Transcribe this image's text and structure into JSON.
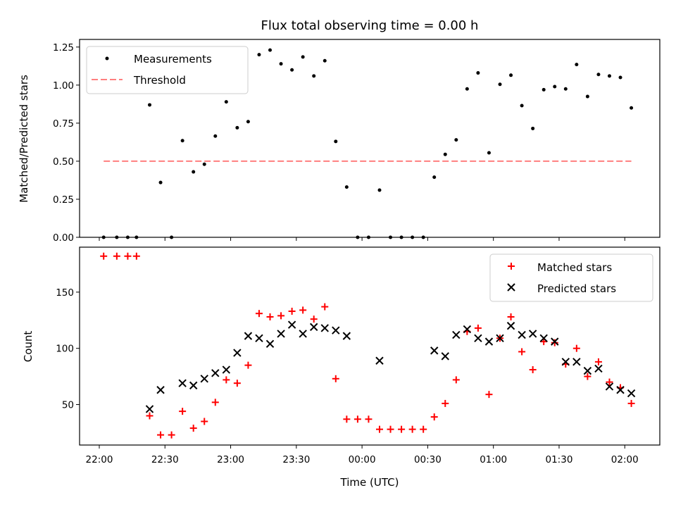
{
  "chart_data": [
    {
      "type": "scatter",
      "title": "Flux total observing time = 0.00 h",
      "ylabel": "Matched/Predicted stars",
      "xlabel": "",
      "ylim": [
        0,
        1.3
      ],
      "yticks": [
        "0.00",
        "0.25",
        "0.50",
        "0.75",
        "1.00",
        "1.25"
      ],
      "xlim": [
        "21:51",
        "02:16"
      ],
      "x_tick_times": [
        "22:00",
        "22:30",
        "23:00",
        "23:30",
        "00:00",
        "00:30",
        "01:00",
        "01:30",
        "02:00"
      ],
      "legend_position": "top-left",
      "series": [
        {
          "name": "Measurements",
          "color": "#000000",
          "marker": "dot",
          "points": [
            [
              "22:02",
              0.0
            ],
            [
              "22:08",
              0.0
            ],
            [
              "22:13",
              0.0
            ],
            [
              "22:17",
              0.0
            ],
            [
              "22:23",
              0.87
            ],
            [
              "22:28",
              0.36
            ],
            [
              "22:33",
              0.0
            ],
            [
              "22:38",
              0.635
            ],
            [
              "22:43",
              0.43
            ],
            [
              "22:48",
              0.48
            ],
            [
              "22:53",
              0.665
            ],
            [
              "22:58",
              0.89
            ],
            [
              "23:03",
              0.72
            ],
            [
              "23:08",
              0.76
            ],
            [
              "23:13",
              1.2
            ],
            [
              "23:18",
              1.23
            ],
            [
              "23:23",
              1.14
            ],
            [
              "23:28",
              1.1
            ],
            [
              "23:33",
              1.185
            ],
            [
              "23:38",
              1.06
            ],
            [
              "23:43",
              1.16
            ],
            [
              "23:48",
              0.63
            ],
            [
              "23:53",
              0.33
            ],
            [
              "23:58",
              0.0
            ],
            [
              "00:03",
              0.0
            ],
            [
              "00:08",
              0.31
            ],
            [
              "00:13",
              0.0
            ],
            [
              "00:18",
              0.0
            ],
            [
              "00:23",
              0.0
            ],
            [
              "00:28",
              0.0
            ],
            [
              "00:33",
              0.395
            ],
            [
              "00:38",
              0.545
            ],
            [
              "00:43",
              0.64
            ],
            [
              "00:48",
              0.975
            ],
            [
              "00:53",
              1.08
            ],
            [
              "00:58",
              0.555
            ],
            [
              "01:03",
              1.005
            ],
            [
              "01:08",
              1.065
            ],
            [
              "01:13",
              0.865
            ],
            [
              "01:18",
              0.715
            ],
            [
              "01:23",
              0.97
            ],
            [
              "01:28",
              0.99
            ],
            [
              "01:33",
              0.975
            ],
            [
              "01:38",
              1.135
            ],
            [
              "01:43",
              0.925
            ],
            [
              "01:48",
              1.07
            ],
            [
              "01:53",
              1.06
            ],
            [
              "01:58",
              1.05
            ],
            [
              "02:03",
              0.85
            ]
          ]
        },
        {
          "name": "Threshold",
          "color": "#ff7f7f",
          "style": "dashed",
          "points": [
            [
              "22:02",
              0.5
            ],
            [
              "02:03",
              0.5
            ]
          ]
        }
      ]
    },
    {
      "type": "scatter",
      "title": "",
      "ylabel": "Count",
      "xlabel": "Time (UTC)",
      "ylim": [
        14,
        190
      ],
      "yticks": [
        "50",
        "100",
        "150"
      ],
      "xlim": [
        "21:51",
        "02:16"
      ],
      "x_ticks": [
        "22:00",
        "22:30",
        "23:00",
        "23:30",
        "00:00",
        "00:30",
        "01:00",
        "01:30",
        "02:00"
      ],
      "legend_position": "top-right",
      "series": [
        {
          "name": "Matched stars",
          "color": "#ff0000",
          "marker": "plus",
          "points": [
            [
              "22:02",
              182
            ],
            [
              "22:08",
              182
            ],
            [
              "22:13",
              182
            ],
            [
              "22:17",
              182
            ],
            [
              "22:23",
              40
            ],
            [
              "22:28",
              23
            ],
            [
              "22:33",
              23
            ],
            [
              "22:38",
              44
            ],
            [
              "22:43",
              29
            ],
            [
              "22:48",
              35
            ],
            [
              "22:53",
              52
            ],
            [
              "22:58",
              72
            ],
            [
              "23:03",
              69
            ],
            [
              "23:08",
              85
            ],
            [
              "23:13",
              131
            ],
            [
              "23:18",
              128
            ],
            [
              "23:23",
              129
            ],
            [
              "23:28",
              133
            ],
            [
              "23:33",
              134
            ],
            [
              "23:38",
              126
            ],
            [
              "23:43",
              137
            ],
            [
              "23:48",
              73
            ],
            [
              "23:53",
              37
            ],
            [
              "23:58",
              37
            ],
            [
              "00:03",
              37
            ],
            [
              "00:08",
              28
            ],
            [
              "00:13",
              28
            ],
            [
              "00:18",
              28
            ],
            [
              "00:23",
              28
            ],
            [
              "00:28",
              28
            ],
            [
              "00:33",
              39
            ],
            [
              "00:38",
              51
            ],
            [
              "00:43",
              72
            ],
            [
              "00:48",
              115
            ],
            [
              "00:53",
              118
            ],
            [
              "00:58",
              59
            ],
            [
              "01:03",
              109
            ],
            [
              "01:08",
              128
            ],
            [
              "01:13",
              97
            ],
            [
              "01:18",
              81
            ],
            [
              "01:23",
              106
            ],
            [
              "01:28",
              105
            ],
            [
              "01:33",
              86
            ],
            [
              "01:38",
              100
            ],
            [
              "01:43",
              75
            ],
            [
              "01:48",
              88
            ],
            [
              "01:53",
              70
            ],
            [
              "01:58",
              65
            ],
            [
              "02:03",
              51
            ]
          ]
        },
        {
          "name": "Predicted stars",
          "color": "#000000",
          "marker": "x",
          "points": [
            [
              "22:23",
              46
            ],
            [
              "22:28",
              63
            ],
            [
              "22:38",
              69
            ],
            [
              "22:43",
              67
            ],
            [
              "22:48",
              73
            ],
            [
              "22:53",
              78
            ],
            [
              "22:58",
              81
            ],
            [
              "23:03",
              96
            ],
            [
              "23:08",
              111
            ],
            [
              "23:13",
              109
            ],
            [
              "23:18",
              104
            ],
            [
              "23:23",
              113
            ],
            [
              "23:28",
              121
            ],
            [
              "23:33",
              113
            ],
            [
              "23:38",
              119
            ],
            [
              "23:43",
              118
            ],
            [
              "23:48",
              116
            ],
            [
              "23:53",
              111
            ],
            [
              "00:08",
              89
            ],
            [
              "00:33",
              98
            ],
            [
              "00:38",
              93
            ],
            [
              "00:43",
              112
            ],
            [
              "00:48",
              117
            ],
            [
              "00:53",
              109
            ],
            [
              "00:58",
              106
            ],
            [
              "01:03",
              109
            ],
            [
              "01:08",
              120
            ],
            [
              "01:13",
              112
            ],
            [
              "01:18",
              113
            ],
            [
              "01:23",
              109
            ],
            [
              "01:28",
              106
            ],
            [
              "01:33",
              88
            ],
            [
              "01:38",
              88
            ],
            [
              "01:43",
              80
            ],
            [
              "01:48",
              82
            ],
            [
              "01:53",
              66
            ],
            [
              "01:58",
              63
            ],
            [
              "02:03",
              60
            ]
          ]
        }
      ]
    }
  ]
}
